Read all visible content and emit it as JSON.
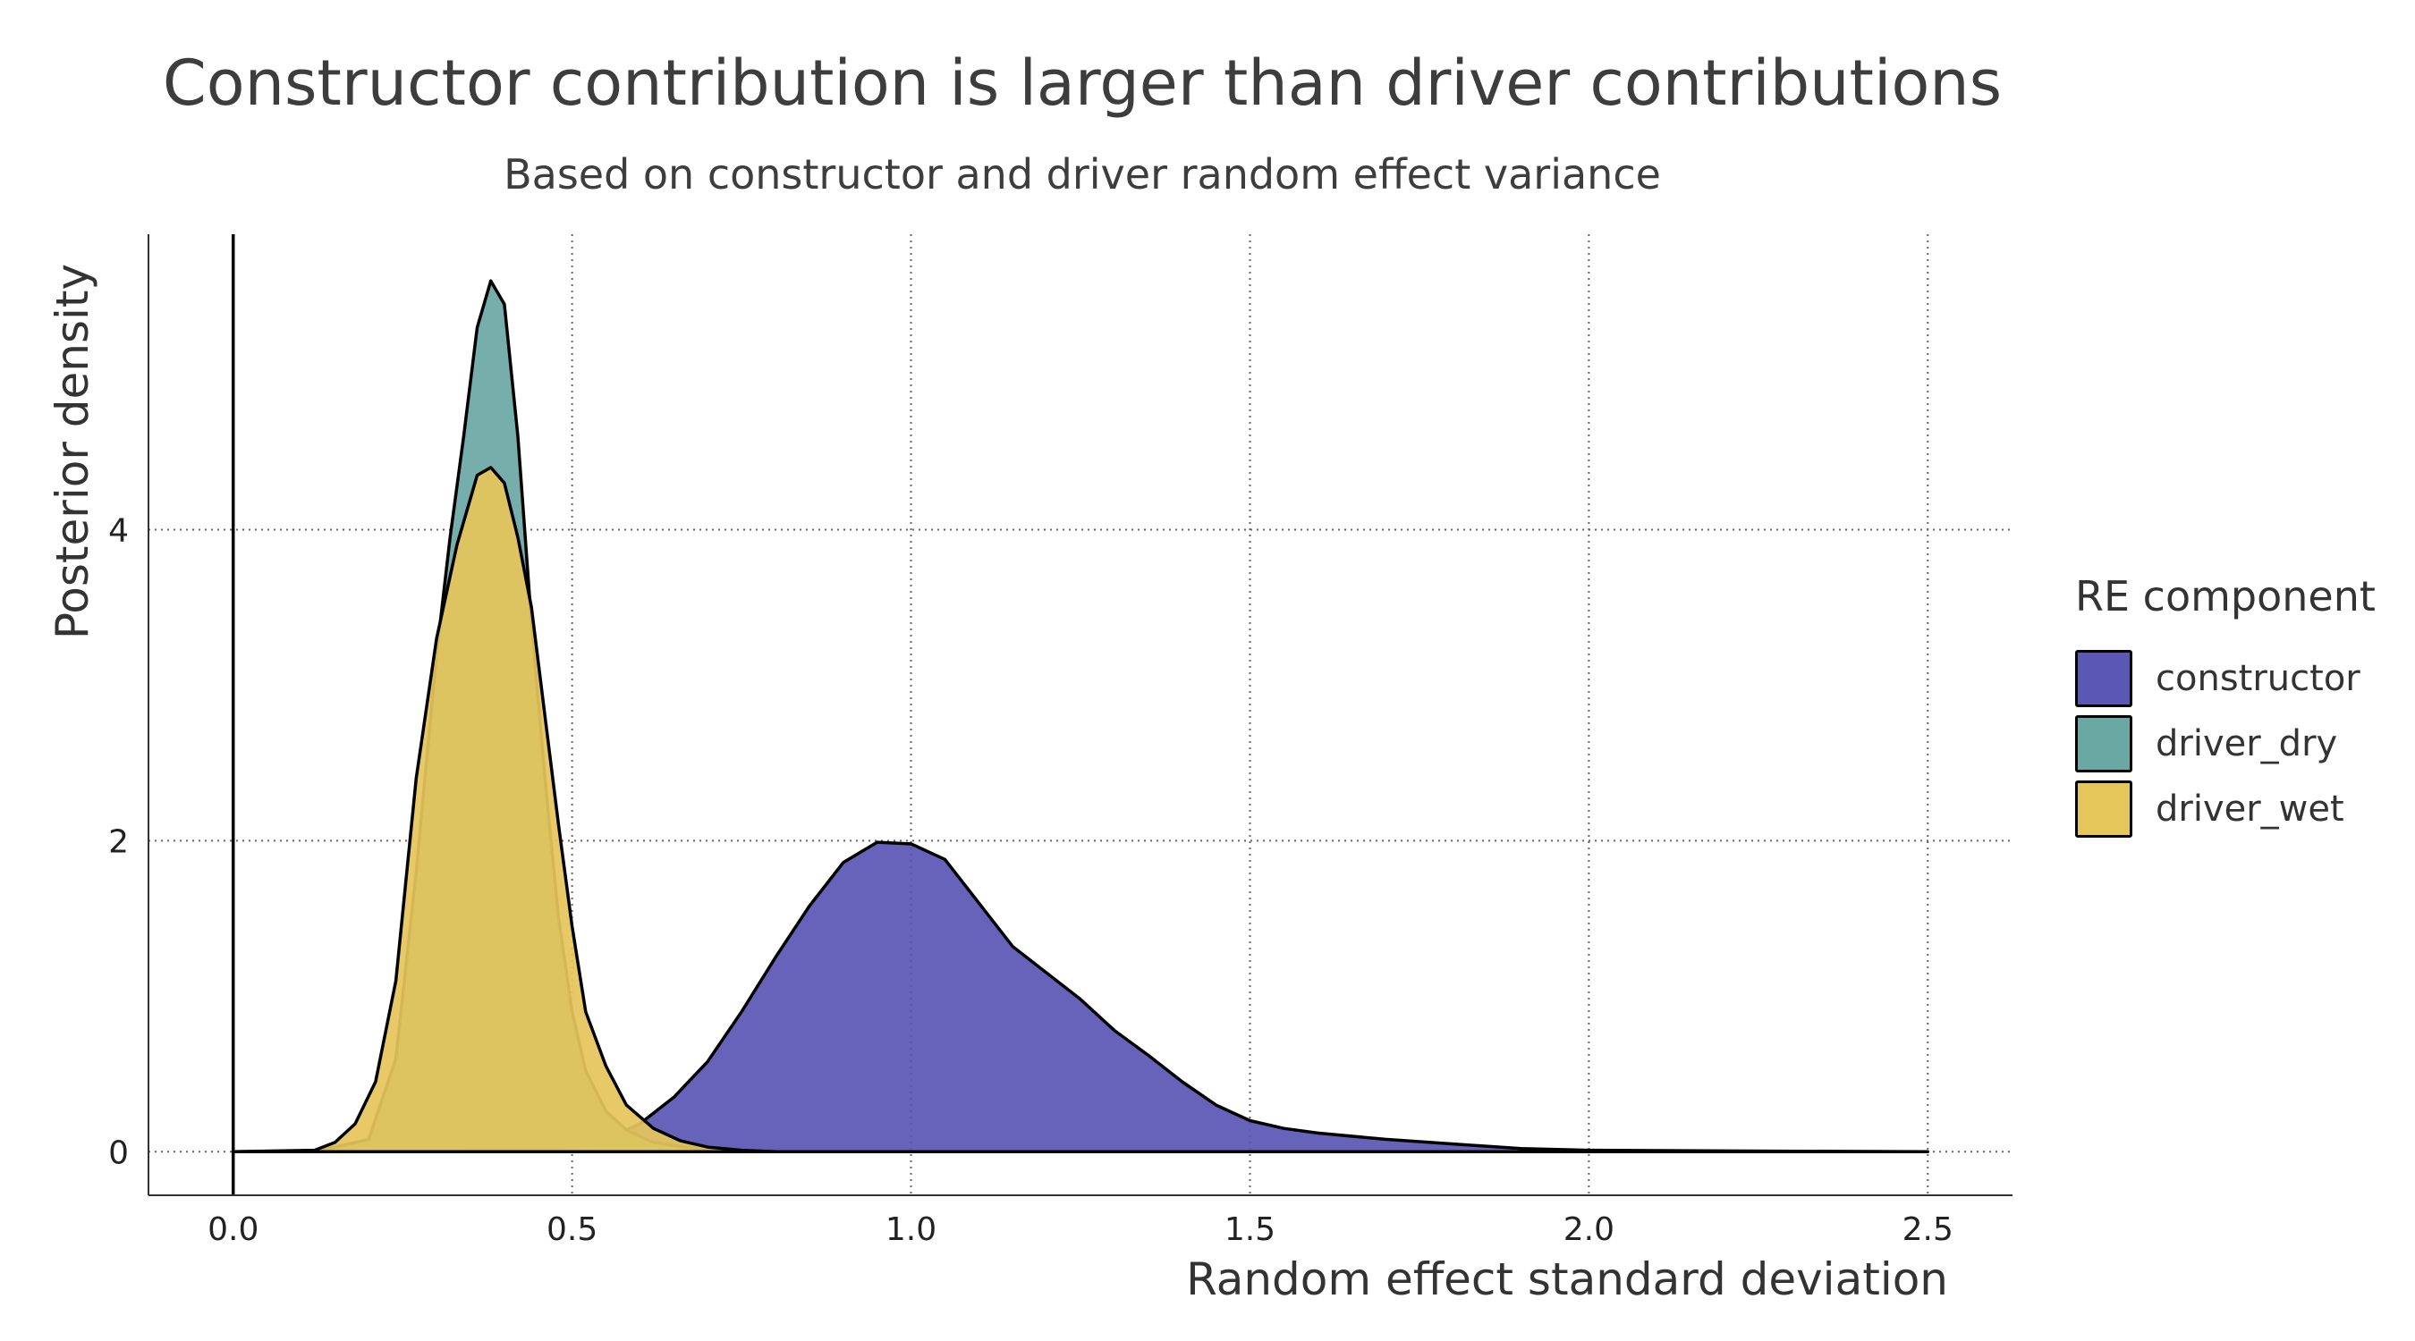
{
  "chart_data": {
    "type": "area",
    "title": "Constructor contribution is larger than driver contributions",
    "subtitle": "Based on constructor and driver random effect variance",
    "xlabel": "Random effect standard deviation",
    "ylabel": "Posterior density",
    "xlim": [
      -0.125,
      2.625
    ],
    "ylim": [
      -0.28,
      5.9
    ],
    "x_ticks": [
      "0.0",
      "0.5",
      "1.0",
      "1.5",
      "2.0",
      "2.5"
    ],
    "y_ticks": [
      "0",
      "2",
      "4"
    ],
    "grid": "dotted",
    "legend": {
      "title": "RE component",
      "position": "right"
    },
    "series": [
      {
        "name": "constructor",
        "color": "#5b57b5",
        "x": [
          0.0,
          0.5,
          0.55,
          0.6,
          0.65,
          0.7,
          0.75,
          0.8,
          0.85,
          0.9,
          0.95,
          1.0,
          1.05,
          1.1,
          1.15,
          1.2,
          1.25,
          1.3,
          1.35,
          1.4,
          1.45,
          1.5,
          1.55,
          1.6,
          1.7,
          1.8,
          1.9,
          2.0,
          2.2,
          2.5
        ],
        "y": [
          0.0,
          0.02,
          0.08,
          0.18,
          0.35,
          0.58,
          0.9,
          1.25,
          1.58,
          1.86,
          1.99,
          1.98,
          1.88,
          1.6,
          1.32,
          1.15,
          0.98,
          0.78,
          0.62,
          0.45,
          0.3,
          0.2,
          0.15,
          0.12,
          0.08,
          0.05,
          0.02,
          0.01,
          0.005,
          0.0
        ]
      },
      {
        "name": "driver_dry",
        "color": "#6aa8a4",
        "x": [
          0.0,
          0.12,
          0.2,
          0.24,
          0.27,
          0.3,
          0.32,
          0.34,
          0.36,
          0.38,
          0.4,
          0.42,
          0.44,
          0.46,
          0.48,
          0.5,
          0.52,
          0.55,
          0.58,
          0.62,
          0.7,
          0.8
        ],
        "y": [
          0.0,
          0.0,
          0.08,
          0.6,
          1.8,
          3.2,
          3.95,
          4.6,
          5.3,
          5.6,
          5.45,
          4.6,
          3.4,
          2.4,
          1.5,
          0.9,
          0.52,
          0.26,
          0.14,
          0.06,
          0.01,
          0.0
        ]
      },
      {
        "name": "driver_wet",
        "color": "#e5c65b",
        "x": [
          0.0,
          0.12,
          0.15,
          0.18,
          0.21,
          0.24,
          0.27,
          0.3,
          0.33,
          0.36,
          0.38,
          0.4,
          0.42,
          0.44,
          0.46,
          0.48,
          0.5,
          0.52,
          0.55,
          0.58,
          0.62,
          0.66,
          0.7,
          0.75,
          0.8
        ],
        "y": [
          0.0,
          0.01,
          0.06,
          0.18,
          0.45,
          1.1,
          2.4,
          3.3,
          3.9,
          4.35,
          4.4,
          4.3,
          3.95,
          3.5,
          2.8,
          2.1,
          1.45,
          0.9,
          0.55,
          0.3,
          0.15,
          0.07,
          0.03,
          0.01,
          0.0
        ]
      }
    ]
  }
}
